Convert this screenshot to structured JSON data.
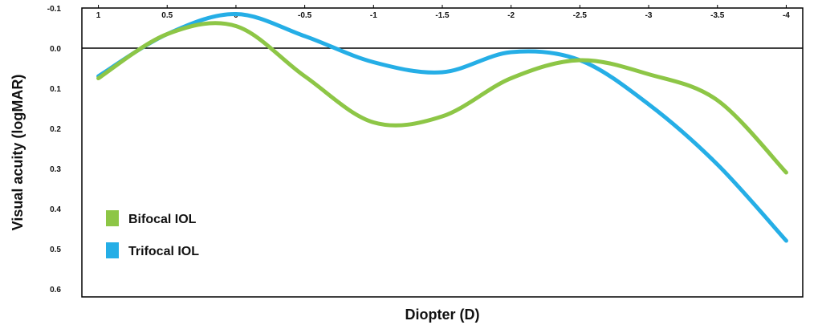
{
  "chart_data": {
    "type": "line",
    "title": "",
    "xlabel": "Diopter (D)",
    "ylabel": "Visual acuity (logMAR)",
    "x": [
      1,
      0.5,
      0,
      -0.5,
      -1,
      -1.5,
      -2,
      -2.5,
      -3,
      -3.5,
      -4
    ],
    "x_tick_labels": [
      "1",
      "0.5",
      "0",
      "-0.5",
      "-1",
      "-1.5",
      "-2",
      "-2.5",
      "-3",
      "-3.5",
      "-4"
    ],
    "y_tick_labels": [
      "-0.1",
      "0.0",
      "0.1",
      "0.2",
      "0.3",
      "0.4",
      "0.5",
      "0.6"
    ],
    "y_ticks": [
      -0.1,
      0.0,
      0.1,
      0.2,
      0.3,
      0.4,
      0.5,
      0.6
    ],
    "xlim": [
      1.12,
      -4.12
    ],
    "ylim": [
      -0.1,
      0.62
    ],
    "y_inverted": true,
    "x_axis_position": "top",
    "reference_line_y": 0,
    "grid": false,
    "legend_position": "lower-left",
    "series": [
      {
        "name": "Bifocal IOL",
        "color": "#8dc646",
        "values": [
          0.075,
          -0.035,
          -0.055,
          0.07,
          0.185,
          0.17,
          0.075,
          0.03,
          0.065,
          0.13,
          0.31
        ]
      },
      {
        "name": "Trifocal IOL",
        "color": "#25aee6",
        "values": [
          0.07,
          -0.035,
          -0.085,
          -0.03,
          0.035,
          0.06,
          0.01,
          0.03,
          0.14,
          0.29,
          0.48
        ]
      }
    ]
  }
}
